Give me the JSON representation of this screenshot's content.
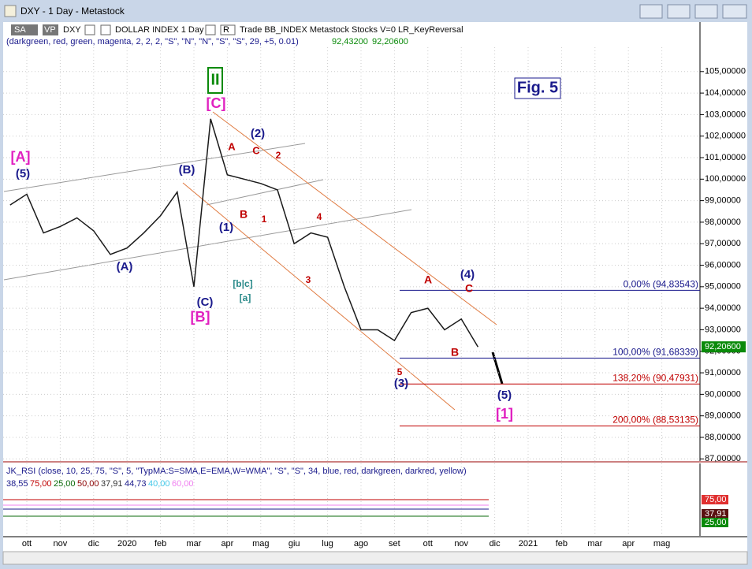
{
  "window": {
    "title": "DXY - 1 Day - Metastock",
    "sa": "SA",
    "vp": "VP",
    "symbol": "DXY",
    "name": "DOLLAR INDEX 1 Day",
    "r": "R",
    "study": "Trade BB_INDEX Metastock Stocks V=0 LR_KeyReversal",
    "params": "(darkgreen, red, green, magenta, 2, 2, 2, \"S\", \"N\", \"N\", \"S\", \"S\", 29, +5, 0.01)",
    "p1": "92,43200",
    "p2": "92,20600"
  },
  "chart_data": {
    "type": "line",
    "color": "#1a1a1a",
    "categories": [
      null,
      "ott",
      null,
      "nov",
      null,
      "dic",
      null,
      "2020",
      null,
      "feb",
      null,
      "mar",
      null,
      "apr",
      null,
      "mag",
      null,
      "giu",
      null,
      "lug",
      null,
      "ago",
      null,
      "set",
      null,
      "ott",
      null,
      "nov",
      null,
      "dic",
      null,
      "2021",
      null,
      "feb",
      null,
      "mar",
      null,
      "apr",
      null,
      "mag",
      null
    ],
    "values": [
      98.8,
      99.3,
      97.5,
      97.8,
      98.2,
      97.6,
      96.5,
      96.8,
      97.5,
      98.3,
      99.4,
      95.0,
      102.8,
      100.2,
      100.0,
      99.8,
      99.5,
      97.0,
      97.5,
      97.3,
      95.0,
      93.0,
      93.0,
      92.5,
      93.8,
      94.0,
      93.0,
      93.5,
      92.2,
      null,
      null,
      null,
      null,
      null,
      null,
      null,
      null,
      null,
      null,
      null,
      null
    ],
    "ylim": [
      86.9,
      107.3
    ],
    "yticks": [
      {
        "value": 87,
        "label": "87,00000"
      },
      {
        "value": 88,
        "label": "88,00000"
      },
      {
        "value": 89,
        "label": "89,00000"
      },
      {
        "value": 90,
        "label": "90,00000"
      },
      {
        "value": 91,
        "label": "91,00000"
      },
      {
        "value": 92,
        "label": "92,00000"
      },
      {
        "value": 93,
        "label": "93,00000"
      },
      {
        "value": 94,
        "label": "94,00000"
      },
      {
        "value": 95,
        "label": "95,00000"
      },
      {
        "value": 96,
        "label": "96,00000"
      },
      {
        "value": 97,
        "label": "97,00000"
      },
      {
        "value": 98,
        "label": "98,00000"
      },
      {
        "value": 99,
        "label": "99,00000"
      },
      {
        "value": 100,
        "label": "100,00000"
      },
      {
        "value": 101,
        "label": "101,00000"
      },
      {
        "value": 102,
        "label": "102,00000"
      },
      {
        "value": 103,
        "label": "103,00000"
      },
      {
        "value": 104,
        "label": "104,00000"
      },
      {
        "value": 105,
        "label": "105,00000"
      }
    ],
    "fib_levels": [
      {
        "value": 94.83543,
        "label": "0,00% (94,83543)"
      },
      {
        "value": 91.68339,
        "label": "100,00% (91,68339)"
      },
      {
        "value": 90.47931,
        "label": "138,20% (90,47931)"
      },
      {
        "value": 88.53135,
        "label": "200,00% (88,53135)"
      }
    ],
    "last_price": {
      "value": 92.206,
      "label": "92,20600"
    },
    "annotations": [
      "II",
      "[C]",
      "[A]",
      "(5)",
      "(B)",
      "(A)",
      "(C)",
      "[B]",
      "(1)",
      "(2)",
      "A",
      "C",
      "2",
      "B",
      "1",
      "4",
      "3",
      "[b|c]",
      "[a]",
      "A",
      "(4)",
      "C",
      "B",
      "5",
      "(3)",
      "(5)",
      "[1]",
      "Fig. 5"
    ]
  },
  "rsi": {
    "header": "JK_RSI   (close, 10, 25, 75, \"S\", 5, \"TypMA:S=SMA,E=EMA,W=WMA\", \"S\", \"S\", 34, blue, red, darkgreen, darkred, yellow)",
    "values": [
      "38,55",
      "75,00",
      "25,00",
      "50,00",
      "37,91",
      "44,73",
      "40,00",
      "60,00"
    ],
    "boxes": [
      "75,00",
      "37,91",
      "25,00"
    ]
  }
}
